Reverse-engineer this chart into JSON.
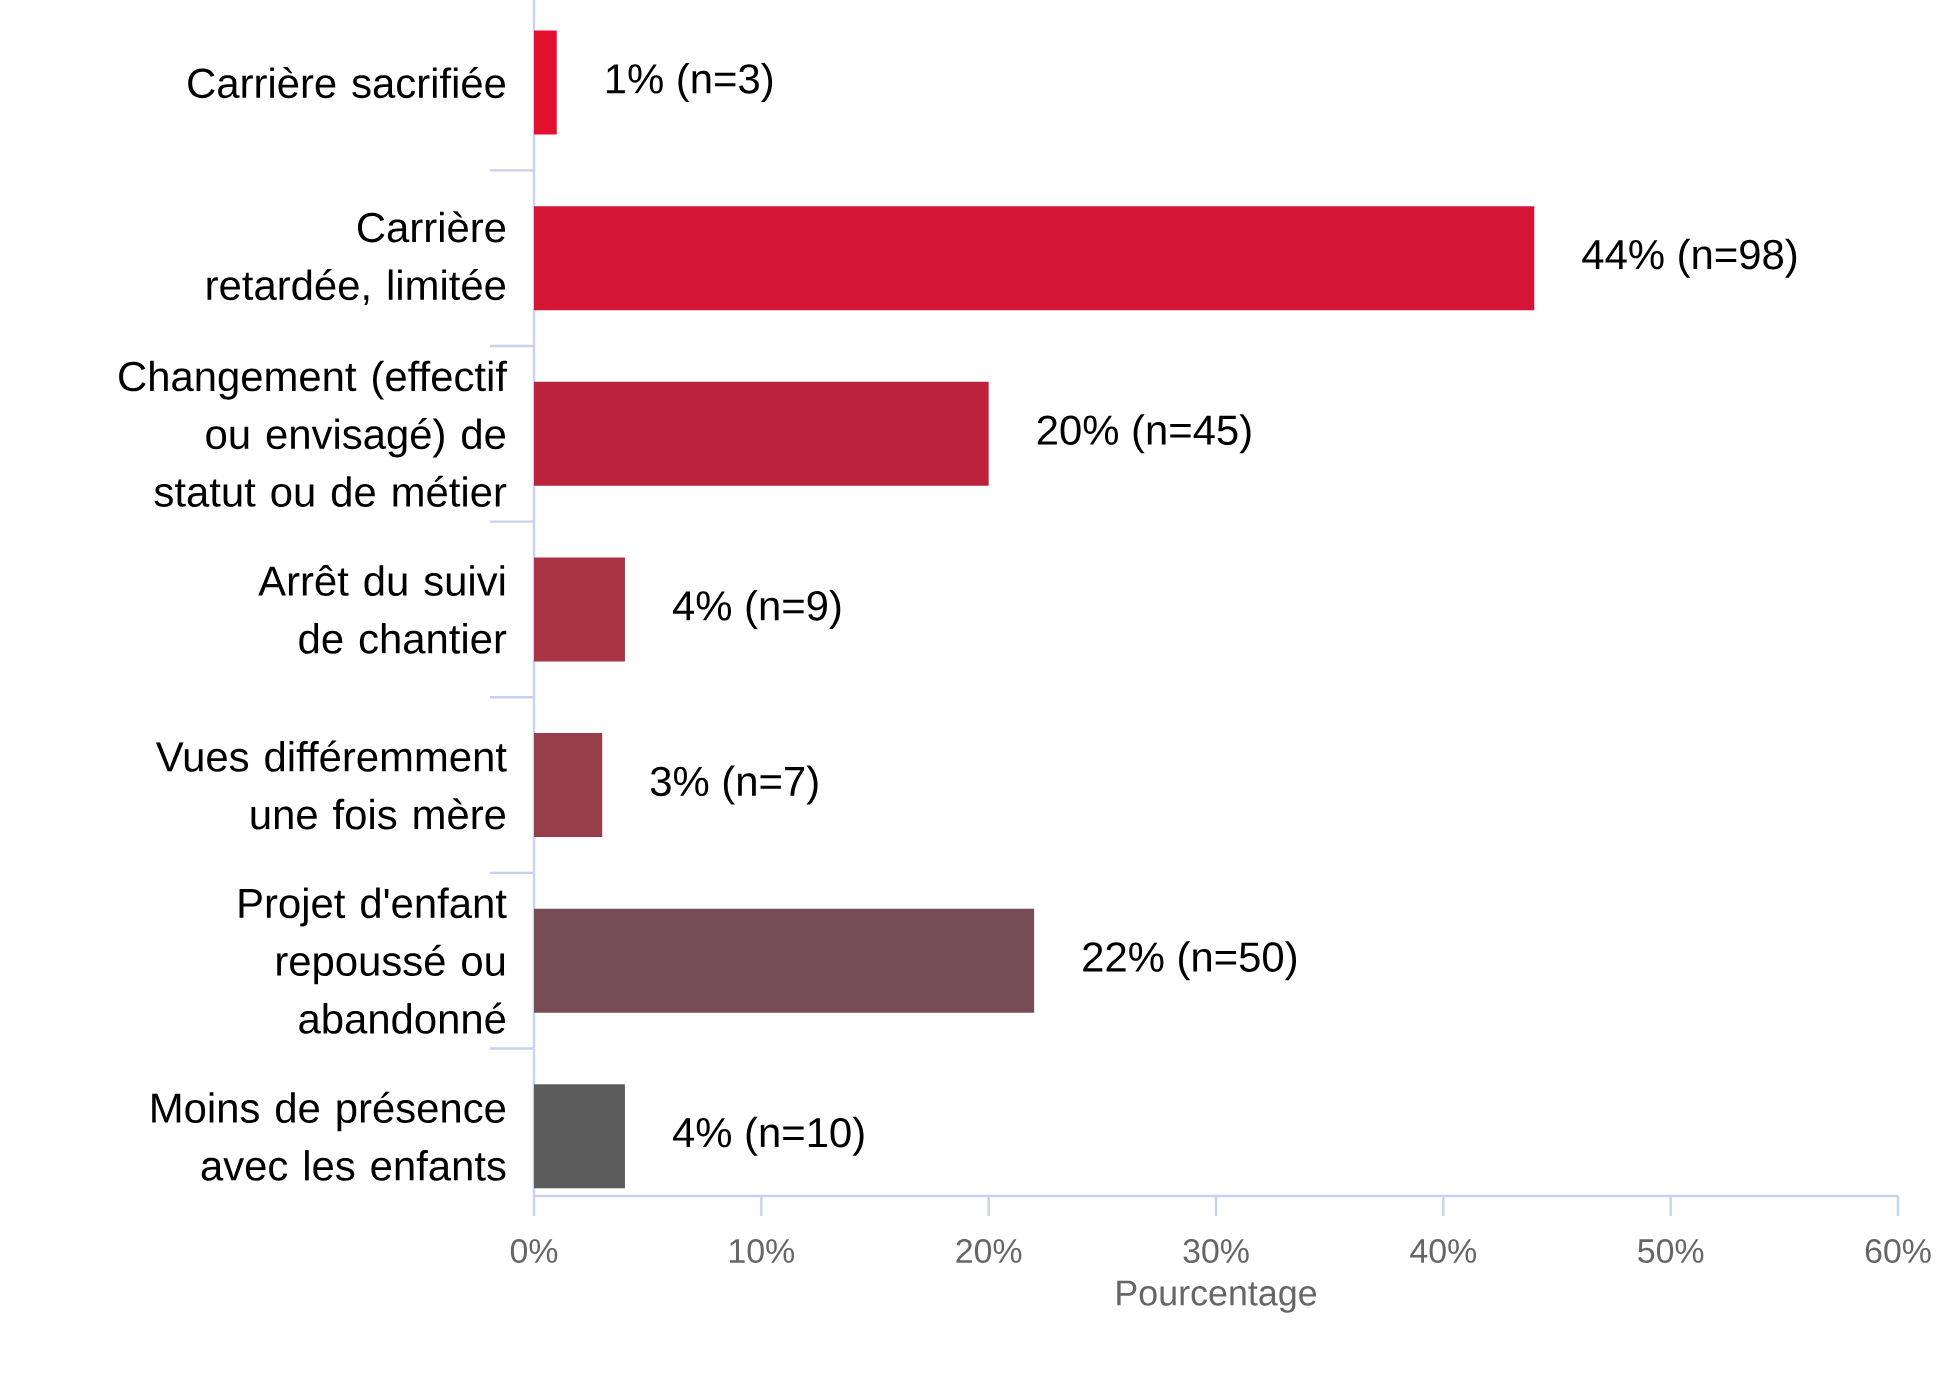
{
  "chart_data": {
    "type": "bar",
    "orientation": "horizontal",
    "xlabel": "Pourcentage",
    "categories": [
      "Carrière sacrifiée",
      "Carrière retardée, limitée",
      "Changement (effectif ou envisagé) de statut ou de métier",
      "Arrêt du suivi de chantier",
      "Vues différemment une fois mère",
      "Projet d'enfant repoussé ou abandonné",
      "Moins de présence avec les enfants"
    ],
    "values": [
      1,
      44,
      20,
      4,
      3,
      22,
      4
    ],
    "colors": [
      "#e3102f",
      "#d51535",
      "#bd223d",
      "#a93444",
      "#963f4b",
      "#764d55",
      "#5c5c5c"
    ],
    "value_labels": [
      "1% (n=3)",
      "44% (n=98)",
      "20% (n=45)",
      "4% (n=9)",
      "3% (n=7)",
      "22% (n=50)",
      "4% (n=10)"
    ],
    "xlim": [
      0,
      60
    ],
    "xticks": [
      {
        "value": 0,
        "label": "0%"
      },
      {
        "value": 10,
        "label": "10%"
      },
      {
        "value": 20,
        "label": "20%"
      },
      {
        "value": 30,
        "label": "30%"
      },
      {
        "value": 40,
        "label": "40%"
      },
      {
        "value": 50,
        "label": "50%"
      },
      {
        "value": 60,
        "label": "60%"
      }
    ],
    "grid": false
  }
}
